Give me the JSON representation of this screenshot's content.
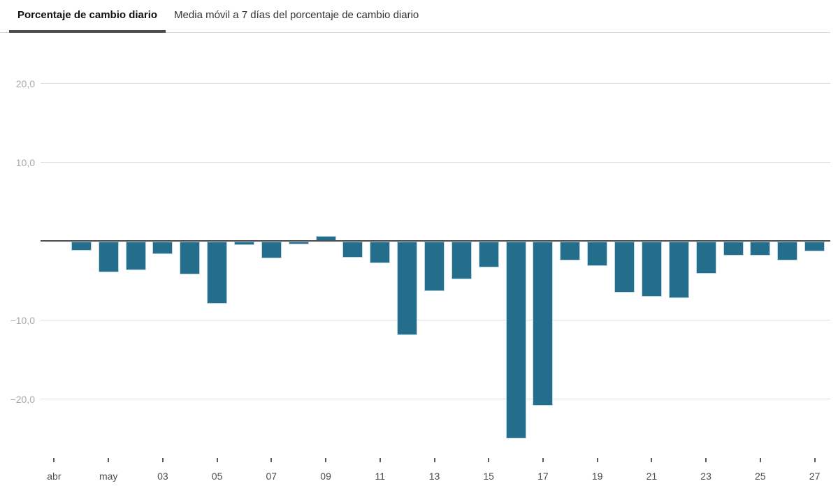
{
  "tabs": {
    "items": [
      {
        "label": "Porcentaje de cambio diario",
        "active": true
      },
      {
        "label": "Media móvil a 7 días del porcentaje de cambio diario",
        "active": false
      }
    ]
  },
  "colors": {
    "bar": "#246e8c",
    "bar_edge": "#bad7e3",
    "zero_axis": "#4d4d4d",
    "gridline": "#dedede",
    "y_label": "#a8a8a8",
    "x_label": "#4d4d4d",
    "tab_active_underline": "#4d4d4d",
    "tab_border": "#d9d9d9"
  },
  "chart_data": {
    "type": "bar",
    "title": "Porcentaje de cambio diario",
    "xlabel": "",
    "ylabel": "",
    "unit": "%",
    "grid": true,
    "legend": false,
    "ylim": [
      -27.4,
      26.4
    ],
    "n_bars": 29,
    "values": [
      0,
      -1.2,
      -3.9,
      -3.7,
      -1.6,
      -4.2,
      -7.9,
      -0.5,
      -2.2,
      -0.4,
      0.7,
      -2.1,
      -2.8,
      -11.9,
      -6.3,
      -4.8,
      -3.3,
      -25.0,
      -20.8,
      -2.4,
      -3.1,
      -6.5,
      -7.0,
      -7.2,
      -4.1,
      -1.8,
      -1.8,
      -2.4,
      -1.3
    ],
    "y_ticks": [
      {
        "value": 20,
        "label": "20,0"
      },
      {
        "value": 10,
        "label": "10,0"
      },
      {
        "value": 0,
        "label": ""
      },
      {
        "value": -10,
        "label": "−10,0"
      },
      {
        "value": -20,
        "label": "−20,0"
      }
    ],
    "x_tick_slots": [
      0,
      2,
      4,
      6,
      8,
      10,
      12,
      14,
      16,
      18,
      20,
      22,
      24,
      26,
      28
    ],
    "x_tick_labels": [
      "abr",
      "may",
      "03",
      "05",
      "07",
      "09",
      "11",
      "13",
      "15",
      "17",
      "19",
      "21",
      "23",
      "25",
      "27"
    ]
  }
}
